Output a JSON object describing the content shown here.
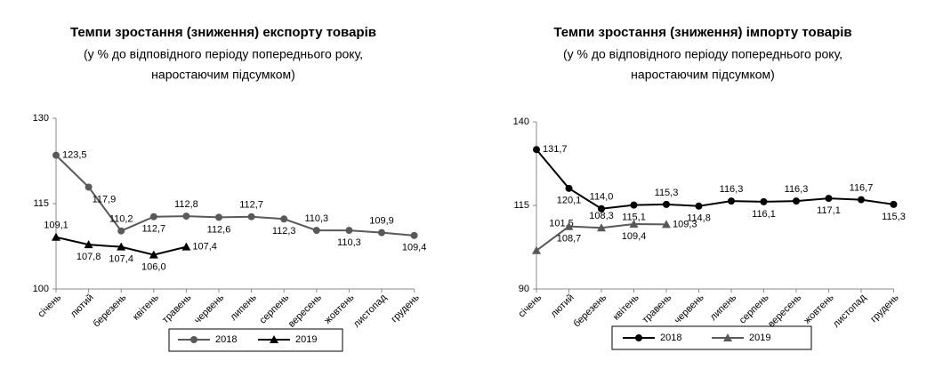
{
  "chart_data": [
    {
      "type": "line",
      "title": "Темпи зростання (зниження) експорту товарів",
      "subtitle": [
        "(у % до відповідного періоду попереднього року,",
        "наростаючим підсумком)"
      ],
      "categories": [
        "січень",
        "лютий",
        "березень",
        "квітень",
        "травень",
        "червень",
        "липень",
        "серпень",
        "вересень",
        "жовтень",
        "листопад",
        "грудень"
      ],
      "ylim": [
        100,
        130
      ],
      "yticks": [
        100,
        115,
        130
      ],
      "series": [
        {
          "name": "2018",
          "color": "#595959",
          "marker": "circle",
          "values": [
            123.5,
            117.9,
            110.2,
            112.7,
            112.8,
            112.6,
            112.7,
            112.3,
            110.3,
            110.3,
            109.9,
            109.4
          ],
          "value_labels": [
            "123,5",
            "117,9",
            "110,2",
            "112,7",
            "112,8",
            "112,6",
            "112,7",
            "112,3",
            "110,3",
            "110,3",
            "109,9",
            "109,4"
          ]
        },
        {
          "name": "2019",
          "color": "#000000",
          "marker": "triangle",
          "values": [
            109.1,
            107.8,
            107.4,
            106.0,
            107.4,
            null,
            null,
            null,
            null,
            null,
            null,
            null
          ],
          "value_labels": [
            "109,1",
            "107,8",
            "107,4",
            "106,0",
            "107,4",
            null,
            null,
            null,
            null,
            null,
            null,
            null
          ]
        }
      ]
    },
    {
      "type": "line",
      "title": "Темпи зростання (зниження) імпорту товарів",
      "subtitle": [
        "(у % до відповідного періоду попереднього року,",
        "наростаючим підсумком)"
      ],
      "categories": [
        "січень",
        "лютий",
        "березень",
        "квітень",
        "травень",
        "червень",
        "липень",
        "серпень",
        "вересень",
        "жовтень",
        "листопад",
        "грудень"
      ],
      "ylim": [
        90,
        140
      ],
      "yticks": [
        90,
        115,
        140
      ],
      "series": [
        {
          "name": "2018",
          "color": "#000000",
          "marker": "circle",
          "values": [
            131.7,
            120.1,
            114.0,
            115.1,
            115.3,
            114.8,
            116.3,
            116.1,
            116.3,
            117.1,
            116.7,
            115.3
          ],
          "value_labels": [
            "131,7",
            "120,1",
            "114,0",
            "115,1",
            "115,3",
            "114,8",
            "116,3",
            "116,1",
            "116,3",
            "117,1",
            "116,7",
            "115,3"
          ]
        },
        {
          "name": "2019",
          "color": "#595959",
          "marker": "triangle",
          "values": [
            101.5,
            108.7,
            108.3,
            109.4,
            109.3,
            null,
            null,
            null,
            null,
            null,
            null,
            null
          ],
          "value_labels": [
            "101,5",
            "108,7",
            "108,3",
            "109,4",
            "109,3",
            null,
            null,
            null,
            null,
            null,
            null,
            null
          ]
        }
      ]
    }
  ]
}
